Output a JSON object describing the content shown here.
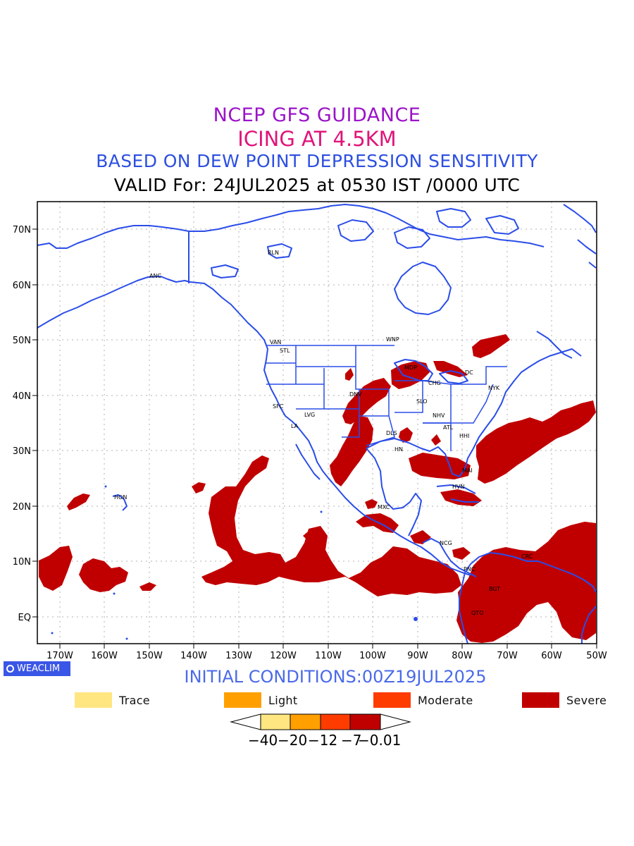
{
  "titles": {
    "line1": "NCEP GFS GUIDANCE",
    "line2": "ICING AT 4.5KM",
    "line3": "BASED ON DEW POINT DEPRESSION SENSITIVITY",
    "line4": "VALID For: 24JUL2025 at 0530 IST /0000 UTC"
  },
  "map": {
    "lat_labels": [
      "70N",
      "60N",
      "50N",
      "40N",
      "30N",
      "20N",
      "10N",
      "EQ"
    ],
    "lon_labels": [
      "170W",
      "160W",
      "150W",
      "140W",
      "130W",
      "120W",
      "110W",
      "100W",
      "90W",
      "80W",
      "70W",
      "60W",
      "50W"
    ],
    "stations": [
      "RLN",
      "ANC",
      "VAN",
      "STL",
      "WNP",
      "MDP",
      "CHG",
      "SFC",
      "DNV",
      "SLO",
      "LVG",
      "LA",
      "NHV",
      "ATL",
      "DLS",
      "HHI",
      "HN",
      "HON",
      "MAI",
      "HVN",
      "MXC",
      "NCG",
      "PNC",
      "CRC",
      "BGT",
      "QTO",
      "DC",
      "NYK"
    ],
    "colors": {
      "coast": "#2a4de8",
      "severe": "#c00000"
    }
  },
  "footer": {
    "brand": "WEACLIM",
    "initial_conditions": "INITIAL CONDITIONS:00Z19JUL2025"
  },
  "legend": {
    "items": [
      {
        "label": "Trace",
        "color": "#ffe680"
      },
      {
        "label": "Light",
        "color": "#ffa000"
      },
      {
        "label": "Moderate",
        "color": "#ff3c00"
      },
      {
        "label": "Severe",
        "color": "#c00000"
      }
    ],
    "colorbar_ticks": [
      "−40",
      "−20",
      "−12",
      "−7",
      "−0.01"
    ]
  }
}
